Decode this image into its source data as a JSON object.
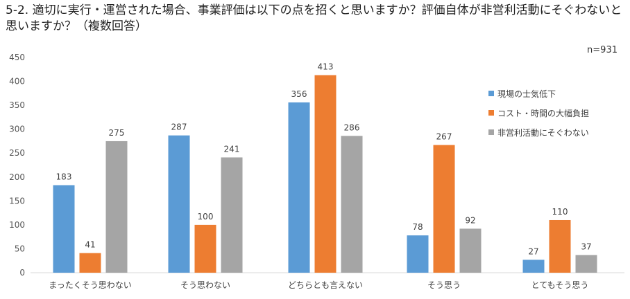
{
  "title": "5-2. 適切に実行・運営された場合、事業評価は以下の点を招くと思いますか？評価自体が非営利活動にそぐわないと思いますか？（複数回答）",
  "chart_data": {
    "type": "bar",
    "annotation": "n=931",
    "categories": [
      "まったくそう思わない",
      "そう思わない",
      "どちらとも言えない",
      "そう思う",
      "とてもそう思う"
    ],
    "series": [
      {
        "name": "現場の士気低下",
        "color": "#5B9BD5",
        "values": [
          183,
          287,
          356,
          78,
          27
        ]
      },
      {
        "name": "コスト・時間の大幅負担",
        "color": "#ED7D31",
        "values": [
          41,
          100,
          413,
          267,
          110
        ]
      },
      {
        "name": "非営利活動にそぐわない",
        "color": "#A5A5A5",
        "values": [
          275,
          241,
          286,
          92,
          37
        ]
      }
    ],
    "ylim": [
      0,
      450
    ],
    "yticks": [
      0,
      50,
      100,
      150,
      200,
      250,
      300,
      350,
      400,
      450
    ],
    "grid": false,
    "legend": "right"
  }
}
